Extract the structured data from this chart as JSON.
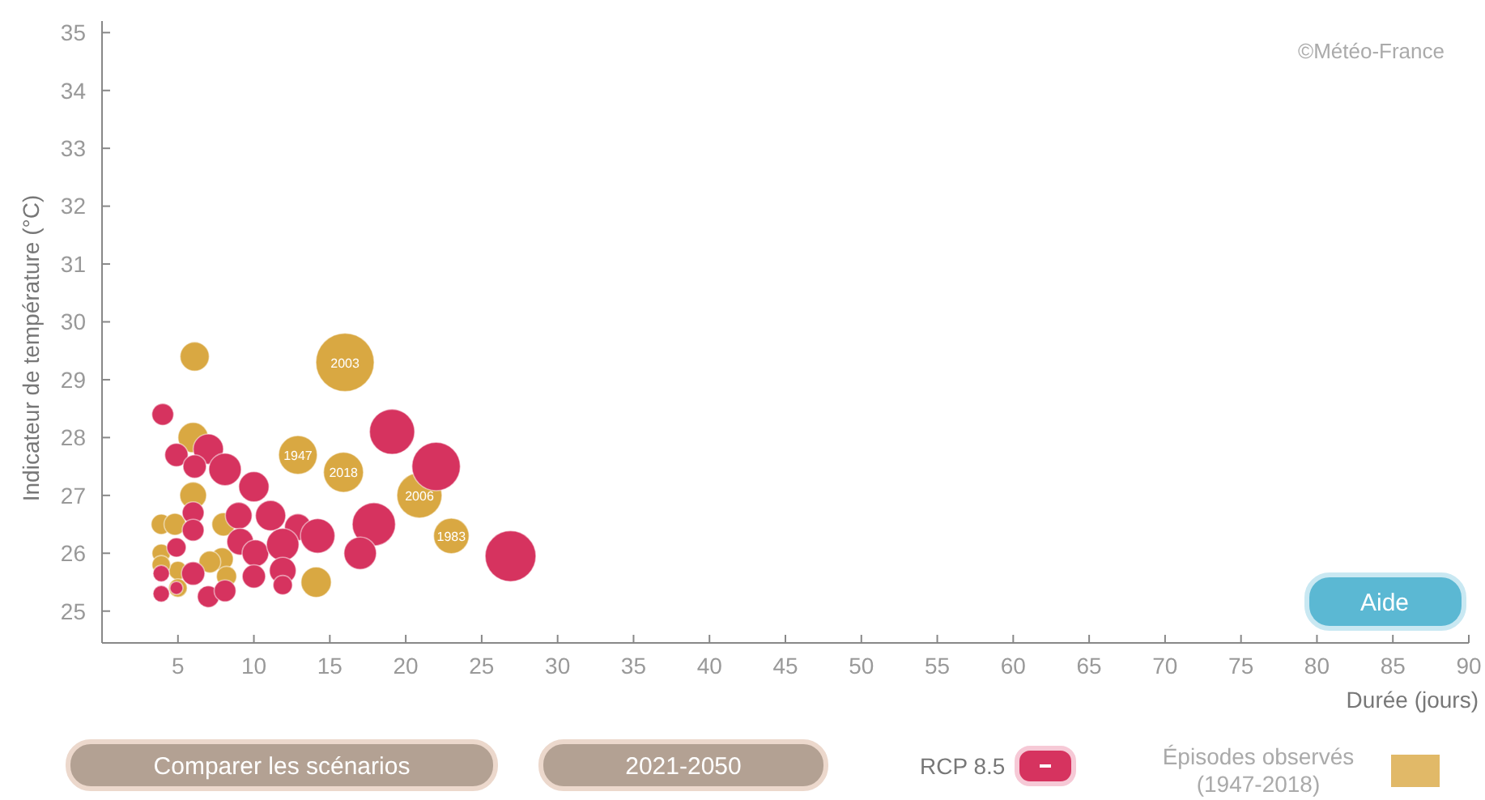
{
  "chart_data": {
    "type": "bubble",
    "xlabel": "Durée (jours)",
    "ylabel": "Indicateur de température (°C)",
    "xlim": [
      0,
      90
    ],
    "xticks": [
      5,
      10,
      15,
      20,
      25,
      30,
      35,
      40,
      45,
      50,
      55,
      60,
      65,
      70,
      75,
      80,
      85,
      90
    ],
    "ylim": [
      24.45,
      35.2
    ],
    "yticks": [
      25,
      26,
      27,
      28,
      29,
      30,
      31,
      32,
      33,
      34,
      35
    ],
    "grid": false,
    "legend": "bottom right",
    "annotations": [
      "©Météo-France",
      "Comparer les scénarios",
      "2021-2050",
      "Aide",
      {
        "text": "2003",
        "x": 16.0,
        "y": 29.3
      },
      {
        "text": "1947",
        "x": 12.9,
        "y": 27.7
      },
      {
        "text": "2018",
        "x": 15.9,
        "y": 27.4
      },
      {
        "text": "2006",
        "x": 20.9,
        "y": 27.0
      },
      {
        "text": "1983",
        "x": 23.0,
        "y": 26.3
      }
    ],
    "series": [
      {
        "name": "Épisodes observés (1947-2018)",
        "color": "#d9a842",
        "x": [
          6.1,
          16.0,
          12.9,
          15.9,
          20.9,
          23.0,
          14.1,
          6.0,
          6.0,
          3.9,
          4.8,
          8.0,
          3.9,
          7.9,
          7.1,
          5.0,
          8.2,
          5.0,
          3.9
        ],
        "values": [
          29.4,
          29.3,
          27.7,
          27.4,
          27.0,
          26.3,
          25.5,
          27.0,
          28.0,
          26.5,
          26.5,
          26.5,
          26.0,
          25.9,
          25.85,
          25.7,
          25.6,
          25.4,
          25.8
        ],
        "sizes": [
          0.25,
          1,
          0.44,
          0.47,
          0.6,
          0.37,
          0.27,
          0.21,
          0.27,
          0.12,
          0.14,
          0.16,
          0.1,
          0.15,
          0.14,
          0.1,
          0.12,
          0.1,
          0.1
        ]
      },
      {
        "name": "RCP 8.5",
        "color": "#d6335f",
        "x": [
          4.0,
          19.1,
          22.0,
          4.9,
          7.0,
          6.1,
          8.1,
          10.0,
          6.0,
          6.0,
          9.0,
          11.1,
          12.9,
          14.2,
          17.9,
          17.0,
          9.1,
          10.1,
          11.9,
          4.9,
          26.9,
          6.0,
          3.9,
          10.0,
          11.9,
          11.9,
          4.9,
          3.9,
          7.0,
          8.1
        ],
        "values": [
          28.4,
          28.1,
          27.5,
          27.7,
          27.8,
          27.5,
          27.45,
          27.15,
          26.7,
          26.4,
          26.65,
          26.65,
          26.45,
          26.3,
          26.5,
          26.0,
          26.2,
          26.0,
          26.15,
          26.1,
          25.95,
          25.65,
          25.65,
          25.6,
          25.7,
          25.45,
          25.4,
          25.3,
          25.25,
          25.35
        ],
        "sizes": [
          0.14,
          0.6,
          0.69,
          0.16,
          0.27,
          0.16,
          0.31,
          0.27,
          0.14,
          0.14,
          0.21,
          0.27,
          0.21,
          0.35,
          0.55,
          0.31,
          0.21,
          0.21,
          0.31,
          0.11,
          0.76,
          0.16,
          0.08,
          0.16,
          0.21,
          0.11,
          0.05,
          0.08,
          0.14,
          0.14
        ]
      }
    ]
  }
}
